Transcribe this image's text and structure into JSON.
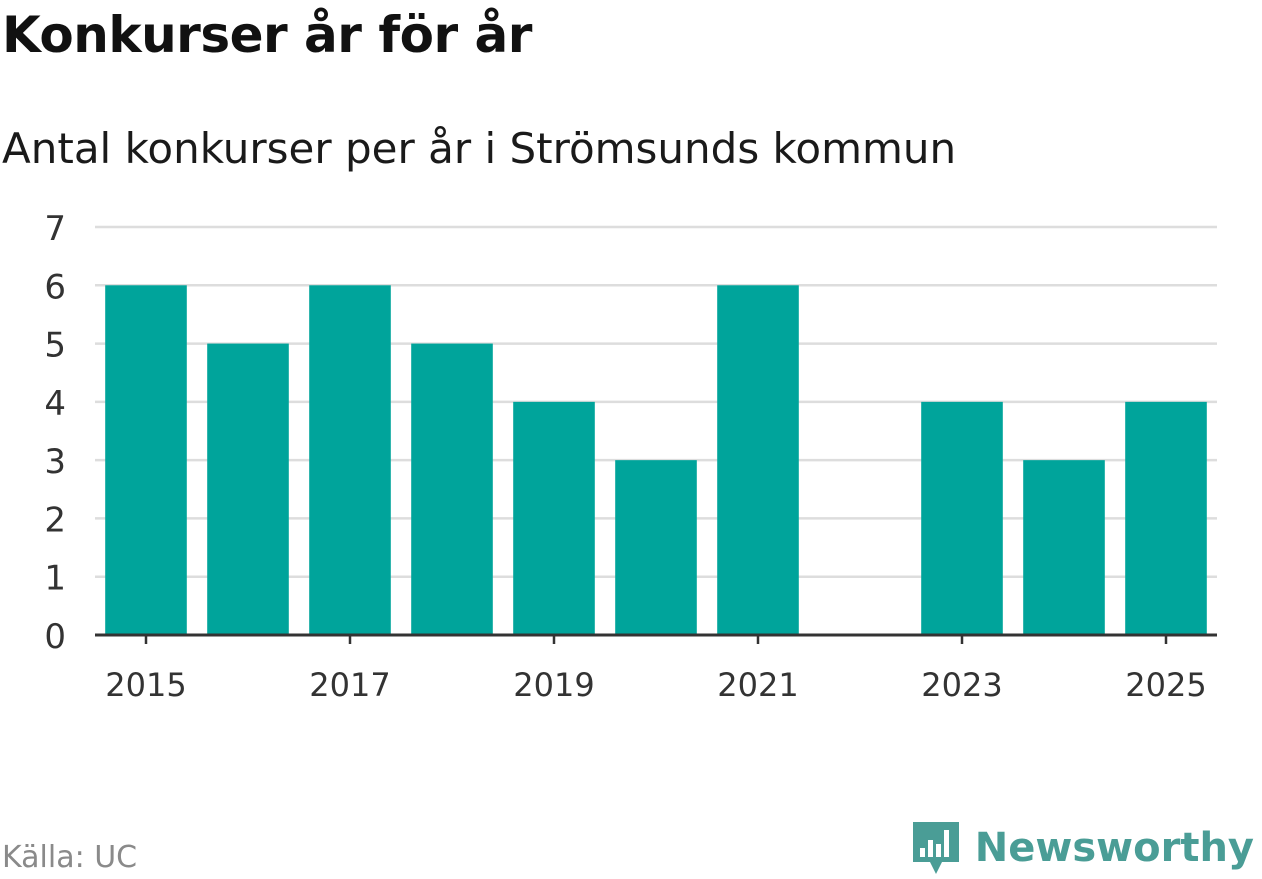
{
  "header": {
    "title": "Konkurser år för år",
    "subtitle": "Antal konkurser per år i Strömsunds kommun"
  },
  "footer": {
    "source": "Källa: UC",
    "brand": "Newsworthy",
    "brand_icon": "newsworthy-logo-icon",
    "brand_color": "#4a9d96"
  },
  "colors": {
    "bar": "#00a49b",
    "grid": "#dddddd",
    "axis": "#333333",
    "tick_text": "#333333"
  },
  "chart_data": {
    "type": "bar",
    "categories": [
      "2015",
      "2016",
      "2017",
      "2018",
      "2019",
      "2020",
      "2021",
      "2022",
      "2023",
      "2024",
      "2025"
    ],
    "values": [
      6,
      5,
      6,
      5,
      4,
      3,
      6,
      0,
      4,
      3,
      4
    ],
    "xtick_labels": [
      "2015",
      "2017",
      "2019",
      "2021",
      "2023",
      "2025"
    ],
    "ytick_labels": [
      "0",
      "1",
      "2",
      "3",
      "4",
      "5",
      "6",
      "7"
    ],
    "ylim": [
      0,
      7
    ],
    "grid": true,
    "legend": "none",
    "xlabel": "",
    "ylabel": ""
  }
}
